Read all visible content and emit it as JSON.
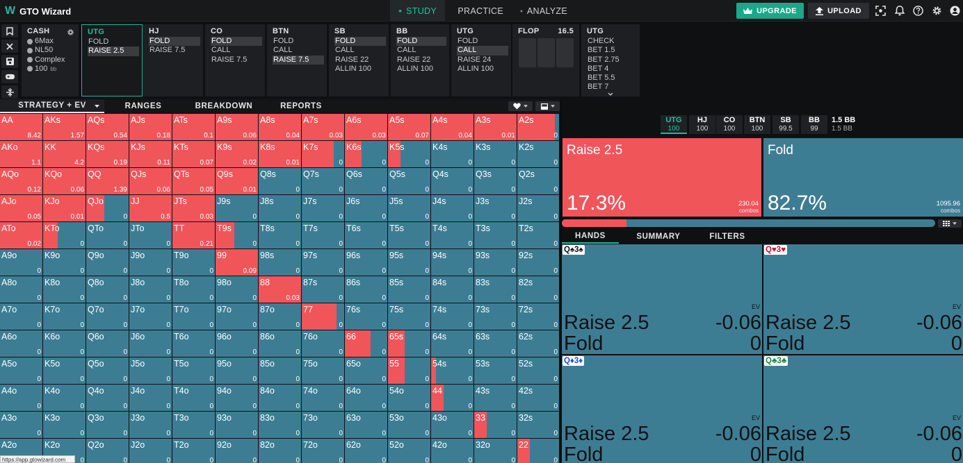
{
  "app": {
    "logo_mark": "W",
    "title": "GTO Wizard"
  },
  "nav": {
    "study": "STUDY",
    "practice": "PRACTICE",
    "analyze": "ANALYZE"
  },
  "topright": {
    "upgrade": "UPGRADE",
    "upload": "UPLOAD"
  },
  "icons": {
    "study": "graduation-cap-icon",
    "practice": "gamepad-icon",
    "analyze": "lightbulb-icon",
    "upgrade": "crown-icon",
    "upload": "upload-icon",
    "screenshot": "screenshot-icon",
    "bell": "bell-icon",
    "help": "help-icon",
    "settings": "gear-icon",
    "account": "user-icon"
  },
  "colors": {
    "raise": "#f0555a",
    "fold": "#3d7d94",
    "accent": "#1fb99d"
  },
  "cash": {
    "title": "CASH",
    "items": [
      "6Max",
      "NL50",
      "Complex",
      "100"
    ],
    "unit": "bb"
  },
  "columns": [
    {
      "title": "UTG",
      "items": [
        "FOLD",
        "RAISE 2.5"
      ],
      "selected": 1,
      "active": true
    },
    {
      "title": "HJ",
      "items": [
        "FOLD",
        "RAISE 7.5"
      ],
      "selected": 0
    },
    {
      "title": "CO",
      "items": [
        "FOLD",
        "CALL",
        "RAISE 7.5"
      ],
      "selected": 0
    },
    {
      "title": "BTN",
      "items": [
        "FOLD",
        "CALL",
        "RAISE 7.5"
      ],
      "selected": 2
    },
    {
      "title": "SB",
      "items": [
        "FOLD",
        "CALL",
        "RAISE 22",
        "ALLIN 100"
      ],
      "selected": 0
    },
    {
      "title": "BB",
      "items": [
        "FOLD",
        "CALL",
        "RAISE 22",
        "ALLIN 100"
      ],
      "selected": 0
    },
    {
      "title": "UTG",
      "items": [
        "FOLD",
        "CALL",
        "RAISE 24",
        "ALLIN 100"
      ],
      "selected": 1
    }
  ],
  "flop": {
    "title": "FLOP",
    "pot": "16.5"
  },
  "utg_post": {
    "title": "UTG",
    "items": [
      "CHECK",
      "BET 1.5",
      "BET 2.75",
      "BET 4",
      "BET 5.5",
      "BET 7"
    ]
  },
  "tabs": [
    "STRATEGY + EV",
    "RANGES",
    "BREAKDOWN",
    "REPORTS"
  ],
  "grid": {
    "ranks": [
      "A",
      "K",
      "Q",
      "J",
      "T",
      "9",
      "8",
      "7",
      "6",
      "5",
      "4",
      "3",
      "2"
    ],
    "visible_rows": 13,
    "raise_freq": [
      [
        1,
        1,
        1,
        1,
        1,
        1,
        1,
        1,
        1,
        1,
        1,
        1,
        0.9
      ],
      [
        1,
        1,
        1,
        1,
        1,
        1,
        1,
        0.76,
        0.4,
        0.3,
        0,
        0,
        0
      ],
      [
        1,
        1,
        1,
        1,
        1,
        1,
        0,
        0,
        0,
        0,
        0,
        0,
        0
      ],
      [
        1,
        1,
        0.42,
        1,
        1,
        0,
        0,
        0,
        0,
        0,
        0,
        0,
        0
      ],
      [
        1,
        0.35,
        0,
        0,
        1,
        0.45,
        0,
        0,
        0,
        0,
        0,
        0,
        0
      ],
      [
        0,
        0,
        0,
        0,
        0,
        1,
        0,
        0,
        0,
        0,
        0,
        0,
        0
      ],
      [
        0,
        0,
        0,
        0,
        0,
        0,
        1,
        0,
        0,
        0,
        0,
        0,
        0
      ],
      [
        0,
        0,
        0,
        0,
        0,
        0,
        0,
        0.82,
        0,
        0,
        0,
        0,
        0
      ],
      [
        0,
        0,
        0,
        0,
        0,
        0,
        0,
        0,
        0.6,
        0.4,
        0,
        0,
        0
      ],
      [
        0,
        0,
        0,
        0,
        0,
        0,
        0,
        0,
        0,
        0.4,
        0.12,
        0,
        0
      ],
      [
        0,
        0,
        0,
        0,
        0,
        0,
        0,
        0,
        0,
        0,
        0.3,
        0,
        0
      ],
      [
        0,
        0,
        0,
        0,
        0,
        0,
        0,
        0,
        0,
        0,
        0,
        0.3,
        0
      ],
      [
        0,
        0,
        0,
        0,
        0,
        0,
        0,
        0,
        0,
        0,
        0,
        0,
        0.3
      ]
    ],
    "ev": [
      [
        "8.42",
        "1.57",
        "0.54",
        "0.18",
        "0.1",
        "0.06",
        "0.04",
        "0.03",
        "0.03",
        "0.07",
        "0.04",
        "0.01",
        "0"
      ],
      [
        "1.1",
        "4.2",
        "0.19",
        "0.11",
        "0.07",
        "0.02",
        "0.01",
        "0",
        "0",
        "0",
        "0",
        "0",
        "0"
      ],
      [
        "0.12",
        "0.06",
        "1.39",
        "0.06",
        "0.05",
        "0.01",
        "0",
        "0",
        "0",
        "0",
        "0",
        "0",
        "0"
      ],
      [
        "0.05",
        "0.01",
        "0",
        "0.5",
        "0.03",
        "0",
        "0",
        "0",
        "0",
        "0",
        "0",
        "0",
        "0"
      ],
      [
        "0.02",
        "0",
        "0",
        "0",
        "0.21",
        "0",
        "0",
        "0",
        "0",
        "0",
        "0",
        "0",
        "0"
      ],
      [
        "0",
        "0",
        "0",
        "0",
        "0",
        "0.09",
        "0",
        "0",
        "0",
        "0",
        "0",
        "0",
        "0"
      ],
      [
        "0",
        "0",
        "0",
        "0",
        "0",
        "0",
        "0.03",
        "0",
        "0",
        "0",
        "0",
        "0",
        "0"
      ],
      [
        "0",
        "0",
        "0",
        "0",
        "0",
        "0",
        "0",
        "0",
        "0",
        "0",
        "0",
        "0",
        "0"
      ],
      [
        "0",
        "0",
        "0",
        "0",
        "0",
        "0",
        "0",
        "0",
        "0",
        "0",
        "0",
        "0",
        "0"
      ],
      [
        "0",
        "0",
        "0",
        "0",
        "0",
        "0",
        "0",
        "0",
        "0",
        "0",
        "0",
        "0",
        "0"
      ],
      [
        "0",
        "0",
        "0",
        "0",
        "0",
        "0",
        "0",
        "0",
        "0",
        "0",
        "0",
        "0",
        "0"
      ],
      [
        "0",
        "0",
        "0",
        "0",
        "0",
        "0",
        "0",
        "0",
        "0",
        "0",
        "0",
        "0",
        "0"
      ],
      [
        "0",
        "0",
        "0",
        "0",
        "0",
        "0",
        "0",
        "0",
        "0",
        "0",
        "0",
        "0",
        "0"
      ]
    ]
  },
  "positions": [
    {
      "name": "UTG",
      "stack": "100",
      "current": true
    },
    {
      "name": "HJ",
      "stack": "100"
    },
    {
      "name": "CO",
      "stack": "100"
    },
    {
      "name": "BTN",
      "stack": "100"
    },
    {
      "name": "SB",
      "stack": "99.5"
    },
    {
      "name": "BB",
      "stack": "99"
    }
  ],
  "pot": {
    "value": "1.5 BB",
    "sub": "1.5 BB"
  },
  "actions": [
    {
      "label": "Raise 2.5",
      "pct": "17.3%",
      "combos": "230.04",
      "combos_word": "combos"
    },
    {
      "label": "Fold",
      "pct": "82.7%",
      "combos": "1095.96",
      "combos_word": "combos"
    }
  ],
  "raise_fraction": 0.173,
  "bottom_tabs": [
    "HANDS",
    "SUMMARY",
    "FILTERS"
  ],
  "hands": [
    {
      "r1": "Q",
      "s1": "♠",
      "r2": "3",
      "s2": "♠",
      "color": "#111111",
      "ev": "EV",
      "l1": "Raise 2.5",
      "v1": "-0.06",
      "l2": "Fold",
      "v2": "0"
    },
    {
      "r1": "Q",
      "s1": "♥",
      "r2": "3",
      "s2": "♥",
      "color": "#c8102e",
      "ev": "EV",
      "l1": "Raise 2.5",
      "v1": "-0.06",
      "l2": "Fold",
      "v2": "0"
    },
    {
      "r1": "Q",
      "s1": "♦",
      "r2": "3",
      "s2": "♦",
      "color": "#1a4fd6",
      "ev": "EV",
      "l1": "Raise 2.5",
      "v1": "-0.06",
      "l2": "Fold",
      "v2": "0"
    },
    {
      "r1": "Q",
      "s1": "♣",
      "r2": "3",
      "s2": "♣",
      "color": "#138a36",
      "ev": "EV",
      "l1": "Raise 2.5",
      "v1": "-0.06",
      "l2": "Fold",
      "v2": "0"
    }
  ],
  "status_url": "https://app.gtowizard.com"
}
